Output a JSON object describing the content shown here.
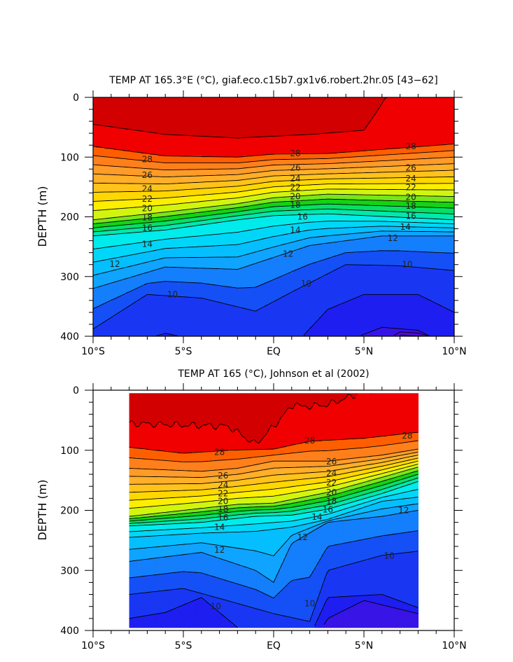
{
  "chart_data": [
    {
      "type": "heatmap",
      "subtype": "filled-contour",
      "title": "TEMP AT 165.3°E (°C), giaf.eco.c15b7.gx1v6.robert.2hr.05 [43−62]",
      "ylabel": "DEPTH (m)",
      "xlabel": "",
      "x_unit": "latitude (negative = S)",
      "xlim": [
        -10,
        10
      ],
      "ylim": [
        0,
        400
      ],
      "y_inverted": true,
      "data_xlim": [
        -10,
        10
      ],
      "data_ylim": [
        0,
        400
      ],
      "x_ticks": [
        -10,
        -5,
        0,
        5,
        10
      ],
      "x_tick_labels": [
        "10°S",
        "5°S",
        "EQ",
        "5°N",
        "10°N"
      ],
      "y_ticks": [
        0,
        100,
        200,
        300,
        400
      ],
      "y_tick_labels": [
        "0",
        "100",
        "200",
        "300",
        "400"
      ],
      "contour_levels": [
        6,
        7,
        8,
        9,
        10,
        11,
        12,
        13,
        14,
        15,
        16,
        17,
        18,
        19,
        20,
        21,
        22,
        23,
        24,
        25,
        26,
        27,
        28,
        29
      ],
      "contour_labels": [
        {
          "text": "28",
          "x": -7.0,
          "y": 104
        },
        {
          "text": "26",
          "x": -7.0,
          "y": 130
        },
        {
          "text": "24",
          "x": -7.0,
          "y": 153
        },
        {
          "text": "22",
          "x": -7.0,
          "y": 170
        },
        {
          "text": "20",
          "x": -7.0,
          "y": 186
        },
        {
          "text": "18",
          "x": -7.0,
          "y": 201
        },
        {
          "text": "16",
          "x": -7.0,
          "y": 219
        },
        {
          "text": "14",
          "x": -7.0,
          "y": 246
        },
        {
          "text": "12",
          "x": -8.8,
          "y": 279
        },
        {
          "text": "10",
          "x": -5.6,
          "y": 330
        },
        {
          "text": "28",
          "x": 1.2,
          "y": 94
        },
        {
          "text": "26",
          "x": 1.2,
          "y": 118
        },
        {
          "text": "24",
          "x": 1.2,
          "y": 136
        },
        {
          "text": "22",
          "x": 1.2,
          "y": 151
        },
        {
          "text": "20",
          "x": 1.2,
          "y": 166
        },
        {
          "text": "18",
          "x": 1.2,
          "y": 180
        },
        {
          "text": "16",
          "x": 1.6,
          "y": 200
        },
        {
          "text": "14",
          "x": 1.2,
          "y": 222
        },
        {
          "text": "12",
          "x": 0.8,
          "y": 262
        },
        {
          "text": "10",
          "x": 1.8,
          "y": 312
        },
        {
          "text": "28",
          "x": 7.6,
          "y": 82
        },
        {
          "text": "26",
          "x": 7.6,
          "y": 118
        },
        {
          "text": "24",
          "x": 7.6,
          "y": 136
        },
        {
          "text": "22",
          "x": 7.6,
          "y": 151
        },
        {
          "text": "20",
          "x": 7.6,
          "y": 167
        },
        {
          "text": "18",
          "x": 7.6,
          "y": 182
        },
        {
          "text": "16",
          "x": 7.6,
          "y": 199
        },
        {
          "text": "14",
          "x": 7.3,
          "y": 217
        },
        {
          "text": "12",
          "x": 6.6,
          "y": 236
        },
        {
          "text": "10",
          "x": 7.4,
          "y": 280
        }
      ]
    },
    {
      "type": "heatmap",
      "subtype": "filled-contour",
      "title": "TEMP AT 165 (°C), Johnson et al (2002)",
      "ylabel": "DEPTH (m)",
      "xlabel": "",
      "x_unit": "latitude (negative = S)",
      "xlim": [
        -10,
        10
      ],
      "ylim": [
        0,
        400
      ],
      "y_inverted": true,
      "data_xlim": [
        -8,
        8
      ],
      "data_ylim": [
        5,
        395
      ],
      "x_ticks": [
        -10,
        -5,
        0,
        5,
        10
      ],
      "x_tick_labels": [
        "10°S",
        "5°S",
        "EQ",
        "5°N",
        "10°N"
      ],
      "y_ticks": [
        0,
        100,
        200,
        300,
        400
      ],
      "y_tick_labels": [
        "0",
        "100",
        "200",
        "300",
        "400"
      ],
      "contour_levels": [
        6,
        7,
        8,
        9,
        10,
        11,
        12,
        13,
        14,
        15,
        16,
        17,
        18,
        19,
        20,
        21,
        22,
        23,
        24,
        25,
        26,
        27,
        28,
        29
      ],
      "contour_labels": [
        {
          "text": "28",
          "x": -3.0,
          "y": 103
        },
        {
          "text": "26",
          "x": -2.8,
          "y": 142
        },
        {
          "text": "24",
          "x": -2.8,
          "y": 158
        },
        {
          "text": "22",
          "x": -2.8,
          "y": 172
        },
        {
          "text": "20",
          "x": -2.8,
          "y": 185
        },
        {
          "text": "18",
          "x": -2.8,
          "y": 198
        },
        {
          "text": "16",
          "x": -2.8,
          "y": 212
        },
        {
          "text": "14",
          "x": -3.0,
          "y": 228
        },
        {
          "text": "12",
          "x": -3.0,
          "y": 266
        },
        {
          "text": "10",
          "x": -3.2,
          "y": 360
        },
        {
          "text": "28",
          "x": 2.0,
          "y": 84
        },
        {
          "text": "26",
          "x": 3.2,
          "y": 119
        },
        {
          "text": "24",
          "x": 3.2,
          "y": 138
        },
        {
          "text": "22",
          "x": 3.2,
          "y": 154
        },
        {
          "text": "20",
          "x": 3.2,
          "y": 170
        },
        {
          "text": "18",
          "x": 3.2,
          "y": 185
        },
        {
          "text": "16",
          "x": 3.0,
          "y": 199
        },
        {
          "text": "14",
          "x": 2.4,
          "y": 211
        },
        {
          "text": "12",
          "x": 1.6,
          "y": 245
        },
        {
          "text": "10",
          "x": 2.0,
          "y": 355
        },
        {
          "text": "28",
          "x": 7.4,
          "y": 76
        },
        {
          "text": "12",
          "x": 7.2,
          "y": 200
        },
        {
          "text": "10",
          "x": 6.4,
          "y": 276
        }
      ]
    }
  ]
}
